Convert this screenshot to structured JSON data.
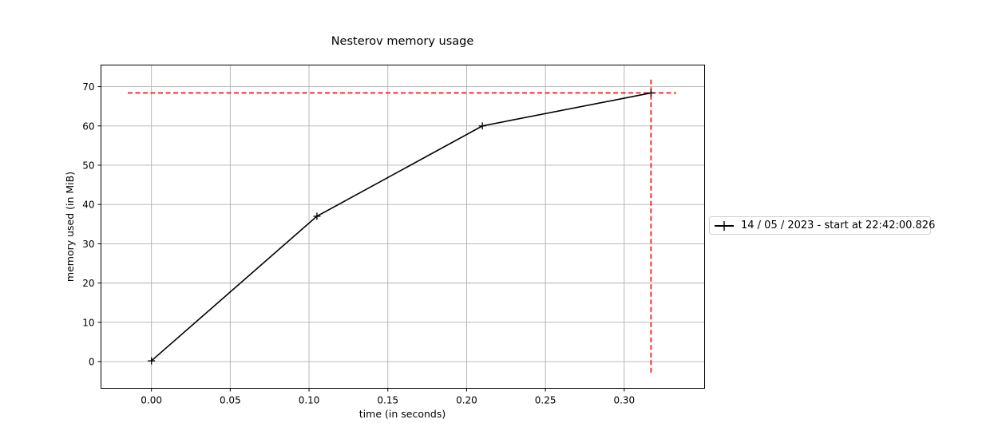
{
  "chart_data": {
    "type": "line",
    "title": "Nesterov memory usage",
    "xlabel": "time (in seconds)",
    "ylabel": "memory used (in MiB)",
    "xlim": [
      -0.032,
      0.351
    ],
    "ylim": [
      -6.8,
      75.5
    ],
    "xticks": [
      0.0,
      0.05,
      0.1,
      0.15,
      0.2,
      0.25,
      0.3
    ],
    "xtick_labels": [
      "0.00",
      "0.05",
      "0.10",
      "0.15",
      "0.20",
      "0.25",
      "0.30"
    ],
    "yticks": [
      0,
      10,
      20,
      30,
      40,
      50,
      60,
      70
    ],
    "ytick_labels": [
      "0",
      "10",
      "20",
      "30",
      "40",
      "50",
      "60",
      "70"
    ],
    "grid": true,
    "legend_position": "right",
    "series": [
      {
        "name": "14 / 05 / 2023 - start at 22:42:00.826",
        "color": "#000000",
        "marker": "+",
        "x": [
          0.0,
          0.105,
          0.21,
          0.317
        ],
        "y": [
          0.2,
          37.0,
          60.0,
          68.4
        ]
      }
    ],
    "reference_lines": [
      {
        "orientation": "horizontal",
        "value": 68.4,
        "from": -0.015,
        "to": 0.333,
        "color": "#ff0000",
        "style": "dashed"
      },
      {
        "orientation": "vertical",
        "value": 0.317,
        "from": -3.2,
        "to": 71.8,
        "color": "#ff0000",
        "style": "dashed"
      }
    ]
  }
}
